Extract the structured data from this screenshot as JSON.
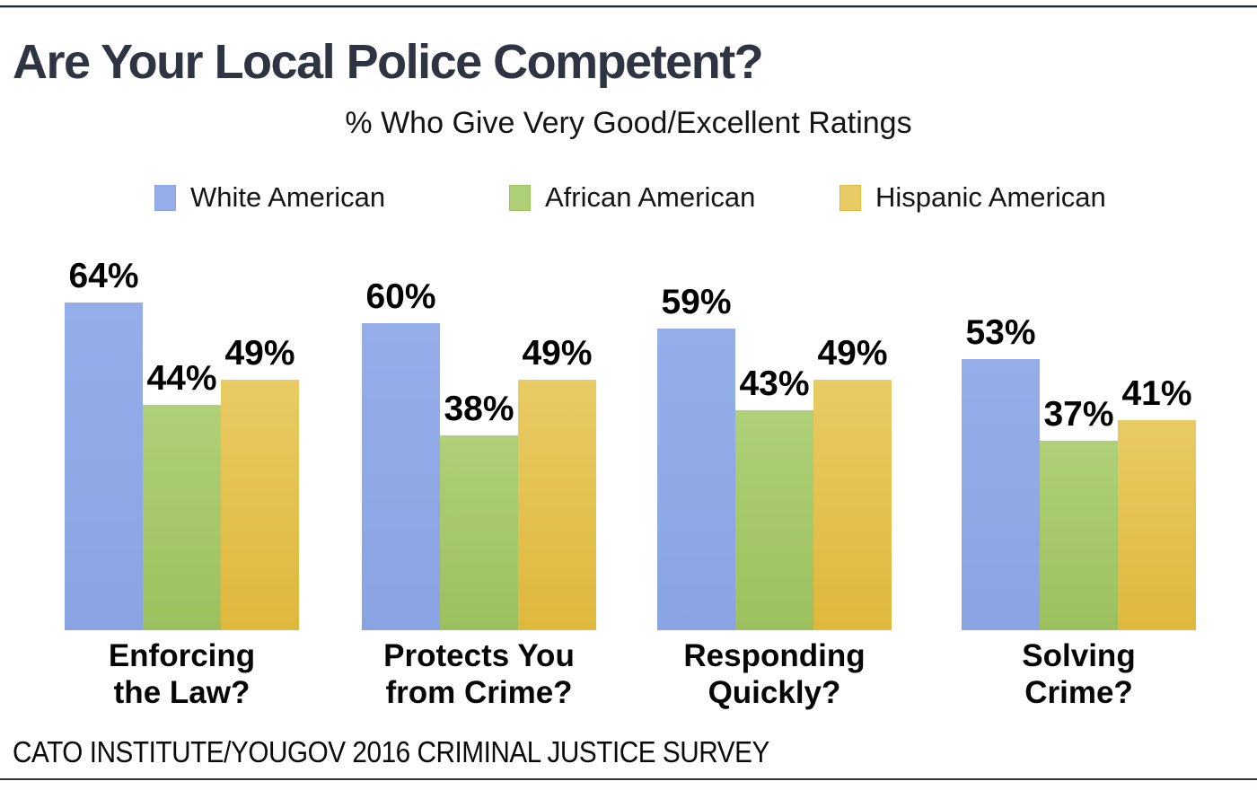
{
  "title": "Are Your Local Police Competent?",
  "subtitle": "% Who Give Very Good/Excellent Ratings",
  "footer": "CATO INSTITUTE/YOUGOV 2016 CRIMINAL JUSTICE SURVEY",
  "colors": {
    "title_text": "#2e3442",
    "body_text": "#0b0b0b",
    "white_american": "#8fa9e6",
    "african_american": "#a8cd6e",
    "hispanic_american": "#e5c453"
  },
  "chart_data": {
    "type": "bar",
    "title": "Are Your Local Police Competent?",
    "subtitle": "% Who Give Very Good/Excellent Ratings",
    "categories": [
      [
        "Enforcing",
        "the Law?"
      ],
      [
        "Protects You",
        "from Crime?"
      ],
      [
        "Responding",
        "Quickly?"
      ],
      [
        "Solving",
        "Crime?"
      ]
    ],
    "series": [
      {
        "name": "White American",
        "color_top": "#95aeea",
        "color_bottom": "#8aa3e3",
        "values": [
          64,
          60,
          59,
          53
        ]
      },
      {
        "name": "African American",
        "color_top": "#afd077",
        "color_bottom": "#9cc05e",
        "values": [
          44,
          38,
          43,
          37
        ]
      },
      {
        "name": "Hispanic American",
        "color_top": "#e8cb64",
        "color_bottom": "#dfb83d",
        "values": [
          49,
          49,
          49,
          41
        ]
      }
    ],
    "value_suffix": "%",
    "xlabel": "",
    "ylabel": "",
    "ylim": [
      0,
      70
    ],
    "grid": false,
    "value_labels_shown": true,
    "legend_position": "top"
  }
}
